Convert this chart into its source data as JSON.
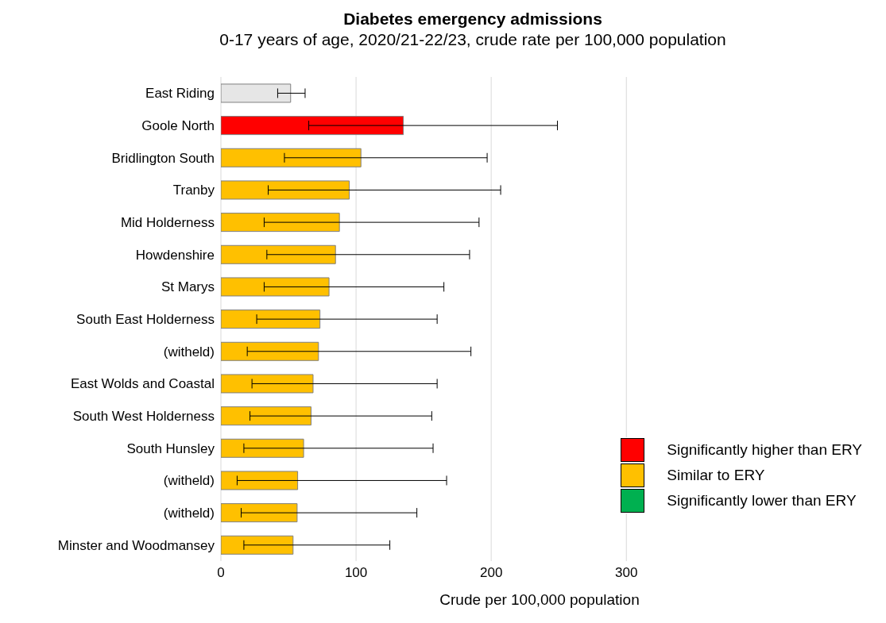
{
  "chart_data": {
    "type": "bar",
    "orientation": "horizontal",
    "stacked": true,
    "title": "Diabetes emergency admissions",
    "subtitle": "0-17 years of age, 2020/21-22/23, crude rate per 100,000 population",
    "xlabel": "Crude per 100,000 population",
    "categories": [
      "East Riding",
      "Goole North",
      "Bridlington South",
      "Tranby",
      "Mid Holderness",
      "Howdenshire",
      "St Marys",
      "South East Holderness",
      "(witheld)",
      "East Wolds and Coastal",
      "South West Holderness",
      "South Hunsley",
      "(witheld)",
      "(witheld)",
      "Minster and Woodmansey"
    ],
    "series": [
      {
        "color": "#e6e6e6",
        "values": [
          51.6,
          null,
          null,
          null,
          null,
          null,
          null,
          null,
          null,
          null,
          null,
          null,
          null,
          null,
          null
        ],
        "errors": [
          [
            42,
            62.3
          ],
          null,
          null,
          null,
          null,
          null,
          null,
          null,
          null,
          null,
          null,
          null,
          null,
          null,
          null
        ]
      },
      {
        "name": "Significantly higher than ERY",
        "color": "#ff0000",
        "values": [
          null,
          135,
          null,
          null,
          null,
          null,
          null,
          null,
          null,
          null,
          null,
          null,
          null,
          null,
          null
        ],
        "errors": [
          null,
          [
            65,
            249
          ],
          null,
          null,
          null,
          null,
          null,
          null,
          null,
          null,
          null,
          null,
          null,
          null,
          null
        ]
      },
      {
        "name": "Similar to ERY",
        "color": "#ffc000",
        "values": [
          null,
          null,
          103.6,
          95,
          87.7,
          84.8,
          80,
          73.3,
          72.2,
          68.2,
          66.7,
          61.2,
          56.8,
          56.4,
          53.4
        ],
        "errors": [
          null,
          null,
          [
            47,
            197
          ],
          [
            35,
            207
          ],
          [
            32,
            191
          ],
          [
            34,
            184
          ],
          [
            32,
            165
          ],
          [
            26.5,
            160
          ],
          [
            19.5,
            185
          ],
          [
            23,
            160
          ],
          [
            21.5,
            156
          ],
          [
            17,
            157
          ],
          [
            12,
            167
          ],
          [
            15,
            145
          ],
          [
            17,
            125
          ]
        ]
      },
      {
        "name": "Significantly lower than ERY",
        "color": "#00b050",
        "values": [
          null,
          null,
          null,
          null,
          null,
          null,
          null,
          null,
          null,
          null,
          null,
          null,
          null,
          null,
          null
        ]
      }
    ],
    "xlim": [
      0,
      300
    ],
    "xticks": [
      0,
      100,
      200,
      300
    ],
    "grid": "x",
    "legend": "bottom right"
  }
}
